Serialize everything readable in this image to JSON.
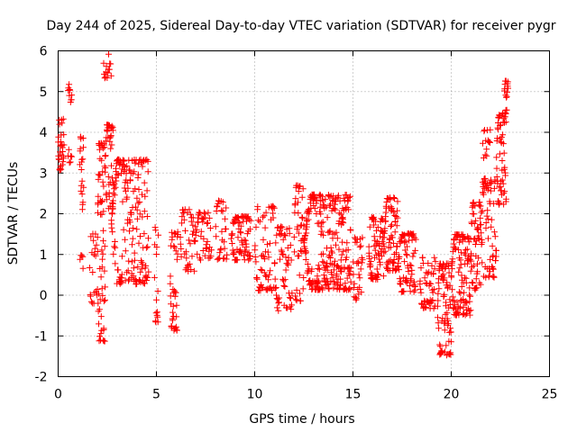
{
  "chart_data": {
    "type": "scatter",
    "title": "Day 244 of 2025, Sidereal Day-to-day VTEC variation (SDTVAR) for receiver pygr",
    "xlabel": "GPS time / hours",
    "ylabel": "SDTVAR / TECUs",
    "xlim": [
      0,
      25
    ],
    "ylim": [
      -2,
      6
    ],
    "xticks": [
      0,
      5,
      10,
      15,
      20,
      25
    ],
    "yticks": [
      -2,
      -1,
      0,
      1,
      2,
      3,
      4,
      5,
      6
    ],
    "grid": true,
    "marker": "plus",
    "color": "#ff0000",
    "clusters": [
      {
        "x0": 0.0,
        "x1": 0.3,
        "y0": 3.0,
        "y1": 4.4,
        "n": 30
      },
      {
        "x0": 0.5,
        "x1": 0.7,
        "y0": 4.7,
        "y1": 5.2,
        "n": 10
      },
      {
        "x0": 0.5,
        "x1": 0.7,
        "y0": 3.2,
        "y1": 3.6,
        "n": 6
      },
      {
        "x0": 1.1,
        "x1": 1.3,
        "y0": 2.0,
        "y1": 4.0,
        "n": 20
      },
      {
        "x0": 1.1,
        "x1": 1.3,
        "y0": 0.6,
        "y1": 1.0,
        "n": 5
      },
      {
        "x0": 1.6,
        "x1": 2.0,
        "y0": -0.3,
        "y1": 1.6,
        "n": 20
      },
      {
        "x0": 2.0,
        "x1": 2.4,
        "y0": -1.4,
        "y1": 4.0,
        "n": 70
      },
      {
        "x0": 2.3,
        "x1": 2.7,
        "y0": 5.3,
        "y1": 5.95,
        "n": 14
      },
      {
        "x0": 2.4,
        "x1": 2.8,
        "y0": 2.0,
        "y1": 4.3,
        "n": 40
      },
      {
        "x0": 2.7,
        "x1": 4.6,
        "y0": 0.1,
        "y1": 3.5,
        "n": 180
      },
      {
        "x0": 4.9,
        "x1": 5.1,
        "y0": -0.8,
        "y1": 1.8,
        "n": 16
      },
      {
        "x0": 5.7,
        "x1": 6.1,
        "y0": -1.0,
        "y1": 1.7,
        "n": 40
      },
      {
        "x0": 6.2,
        "x1": 7.0,
        "y0": 0.5,
        "y1": 2.2,
        "n": 40
      },
      {
        "x0": 7.0,
        "x1": 7.8,
        "y0": 0.8,
        "y1": 2.1,
        "n": 40
      },
      {
        "x0": 8.0,
        "x1": 8.6,
        "y0": 0.8,
        "y1": 2.4,
        "n": 30
      },
      {
        "x0": 8.8,
        "x1": 9.8,
        "y0": 0.8,
        "y1": 2.0,
        "n": 70
      },
      {
        "x0": 10.0,
        "x1": 11.0,
        "y0": 0.0,
        "y1": 2.3,
        "n": 60
      },
      {
        "x0": 11.0,
        "x1": 11.9,
        "y0": -0.5,
        "y1": 1.8,
        "n": 60
      },
      {
        "x0": 12.0,
        "x1": 12.5,
        "y0": -0.3,
        "y1": 2.9,
        "n": 40
      },
      {
        "x0": 12.5,
        "x1": 14.9,
        "y0": 0.0,
        "y1": 2.6,
        "n": 260
      },
      {
        "x0": 15.0,
        "x1": 15.5,
        "y0": -0.2,
        "y1": 1.5,
        "n": 30
      },
      {
        "x0": 15.8,
        "x1": 16.6,
        "y0": 0.3,
        "y1": 2.0,
        "n": 70
      },
      {
        "x0": 16.6,
        "x1": 17.3,
        "y0": 0.5,
        "y1": 2.5,
        "n": 70
      },
      {
        "x0": 17.3,
        "x1": 18.2,
        "y0": 0.0,
        "y1": 1.6,
        "n": 70
      },
      {
        "x0": 18.4,
        "x1": 19.2,
        "y0": -0.4,
        "y1": 1.0,
        "n": 50
      },
      {
        "x0": 19.3,
        "x1": 20.0,
        "y0": -1.6,
        "y1": 0.9,
        "n": 80
      },
      {
        "x0": 20.0,
        "x1": 21.0,
        "y0": -0.6,
        "y1": 1.6,
        "n": 110
      },
      {
        "x0": 21.0,
        "x1": 21.5,
        "y0": 0.0,
        "y1": 2.4,
        "n": 50
      },
      {
        "x0": 21.5,
        "x1": 22.3,
        "y0": 0.3,
        "y1": 3.0,
        "n": 70
      },
      {
        "x0": 21.6,
        "x1": 22.0,
        "y0": 3.3,
        "y1": 4.1,
        "n": 14
      },
      {
        "x0": 22.3,
        "x1": 22.8,
        "y0": 2.1,
        "y1": 4.6,
        "n": 60
      },
      {
        "x0": 22.7,
        "x1": 22.9,
        "y0": 4.5,
        "y1": 5.3,
        "n": 16
      }
    ]
  }
}
